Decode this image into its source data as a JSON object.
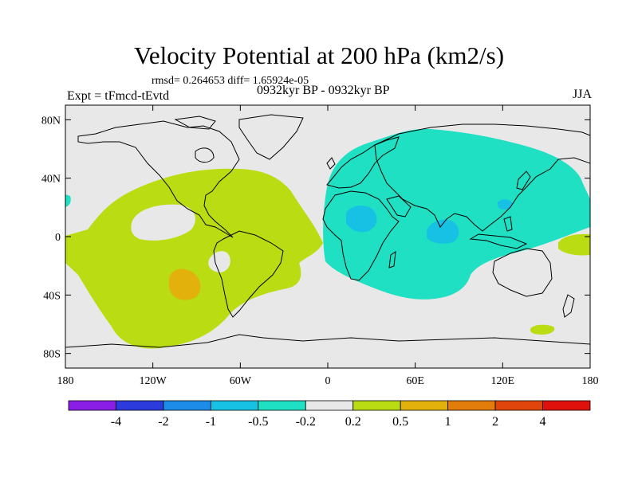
{
  "title": "Velocity Potential at 200 hPa (km2/s)",
  "stats_line": "rmsd= 0.264653 diff= 1.65924e-05",
  "experiment": "Expt = tFmcd-tEvtd",
  "period": "0932kyr BP - 0932kyr BP",
  "season": "JJA",
  "axes": {
    "lat_labels": [
      "80N",
      "40N",
      "0",
      "40S",
      "80S"
    ],
    "lat_values": [
      80,
      40,
      0,
      -40,
      -80
    ],
    "lon_labels": [
      "180",
      "120W",
      "60W",
      "0",
      "60E",
      "120E",
      "180"
    ],
    "lon_values": [
      -180,
      -120,
      -60,
      0,
      60,
      120,
      180
    ]
  },
  "colorbar": {
    "labels": [
      "-4",
      "-2",
      "-1",
      "-0.5",
      "-0.2",
      "0.2",
      "0.5",
      "1",
      "2",
      "4"
    ],
    "colors": [
      "#8a1ee6",
      "#2b3bdc",
      "#1d8be8",
      "#16c1e4",
      "#1fe0c2",
      "#e8e8e8",
      "#b9dd12",
      "#e2b10c",
      "#e27d0c",
      "#e0460c",
      "#e0100c"
    ]
  },
  "colors": {
    "background": "#e8e8e8",
    "positive_weak": "#b9dd12",
    "positive_mid": "#e2b10c",
    "negative_weak": "#1fe0c2",
    "negative_mid": "#16c1e4"
  }
}
